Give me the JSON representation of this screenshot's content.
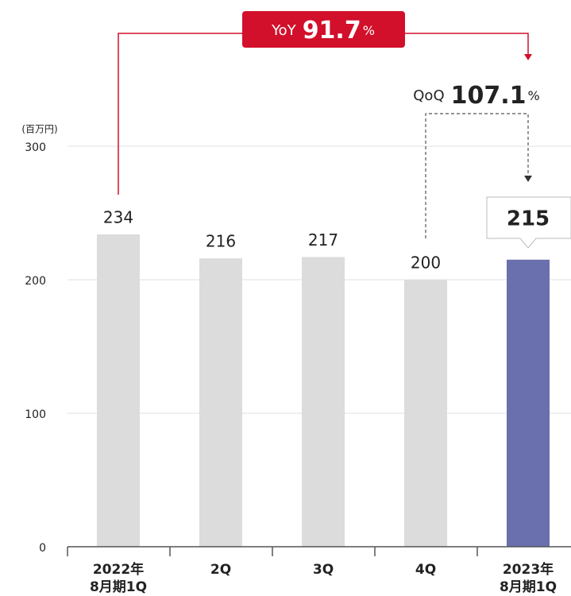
{
  "chart_data": {
    "type": "bar",
    "unit_label": "(百万円)",
    "categories": [
      "2022年\n8月期1Q",
      "2Q",
      "3Q",
      "4Q",
      "2023年\n8月期1Q"
    ],
    "values": [
      234,
      216,
      217,
      200,
      215
    ],
    "colors": [
      "#dcdcdc",
      "#dcdcdc",
      "#dcdcdc",
      "#dcdcdc",
      "#6a6fae"
    ],
    "ylim": [
      0,
      300
    ],
    "yticks": [
      0,
      100,
      200,
      300
    ],
    "grid": true,
    "yoy": {
      "label": "YoY",
      "value": 91.7,
      "unit": "%",
      "color": "#d2102b"
    },
    "qoq": {
      "label": "QoQ",
      "value": 107.1,
      "unit": "%"
    }
  }
}
